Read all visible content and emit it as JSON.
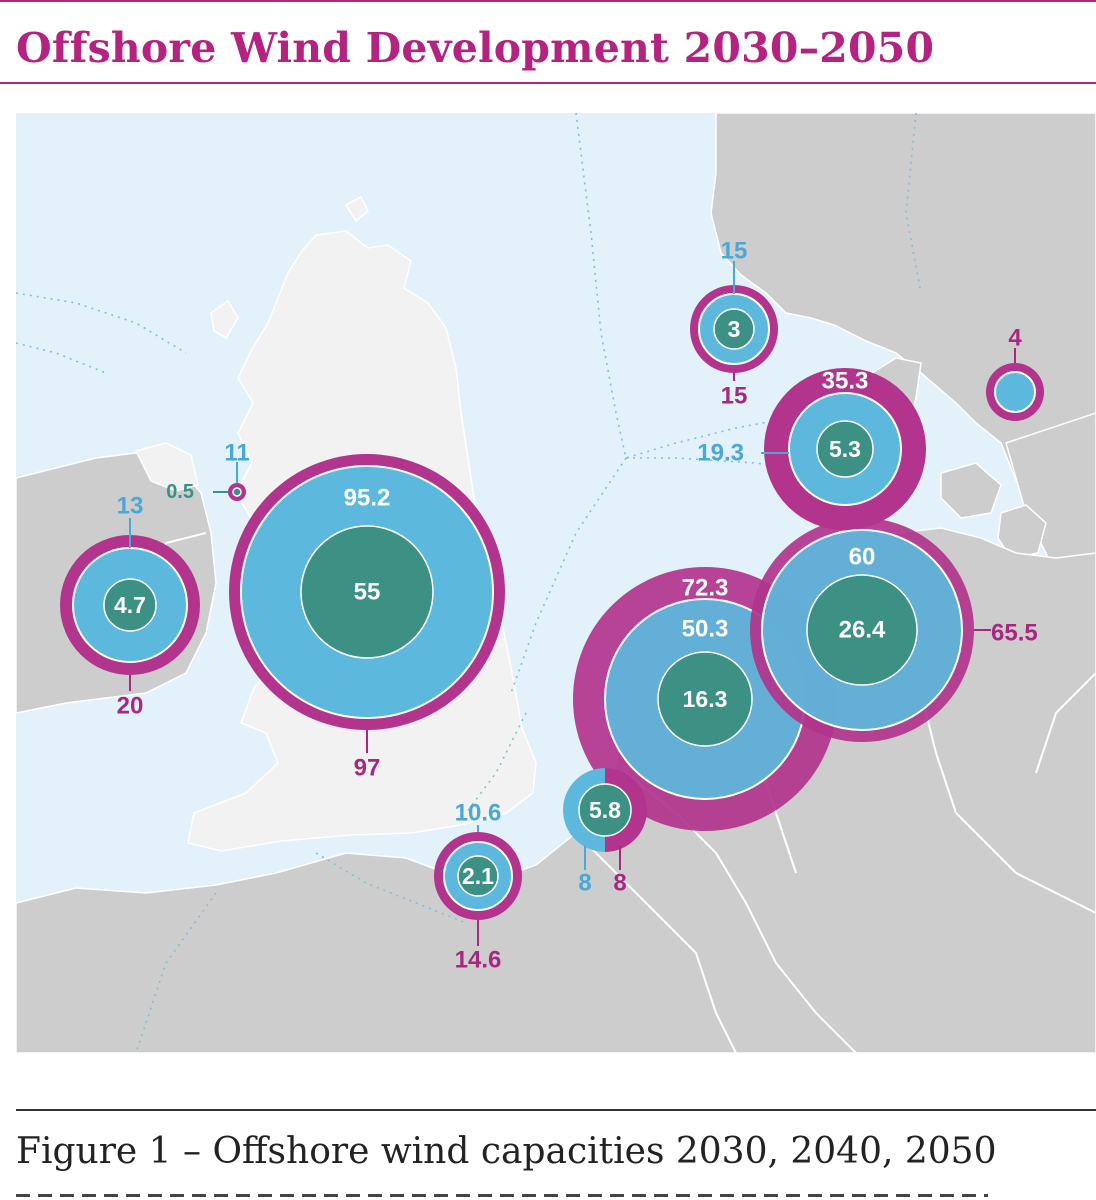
{
  "title": "Offshore Wind Development 2030–2050",
  "caption": "Figure 1 – Offshore wind capacities 2030, 2040, 2050",
  "colors": {
    "y2030": "#3d9184",
    "y2040": "#5cb8dc",
    "y2050": "#b2348c",
    "sea": "#e3f1fb",
    "land_uk": "#f2f2f2",
    "land_other": "#cdcdcd",
    "border": "#ffffff"
  },
  "sites": [
    {
      "id": "ireland",
      "v2030": "4.7",
      "v2040": "13",
      "v2050": "20"
    },
    {
      "id": "isle-of-man",
      "v2030": "0.5",
      "v2040": "11",
      "v2050": ""
    },
    {
      "id": "uk",
      "v2030": "55",
      "v2040": "95.2",
      "v2050": "97"
    },
    {
      "id": "norway",
      "v2030": "3",
      "v2040": "15",
      "v2050": "15"
    },
    {
      "id": "sweden",
      "v2030": "",
      "v2040": "2",
      "v2050": "4"
    },
    {
      "id": "denmark",
      "v2030": "5.3",
      "v2040": "19.3",
      "v2050": "35.3"
    },
    {
      "id": "germany",
      "v2030": "26.4",
      "v2040": "60",
      "v2050": "65.5"
    },
    {
      "id": "netherlands",
      "v2030": "16.3",
      "v2040": "50.3",
      "v2050": "72.3"
    },
    {
      "id": "belgium",
      "v2030": "5.8",
      "v2040": "8",
      "v2050": "8"
    },
    {
      "id": "france",
      "v2030": "2.1",
      "v2040": "10.6",
      "v2050": "14.6"
    }
  ]
}
